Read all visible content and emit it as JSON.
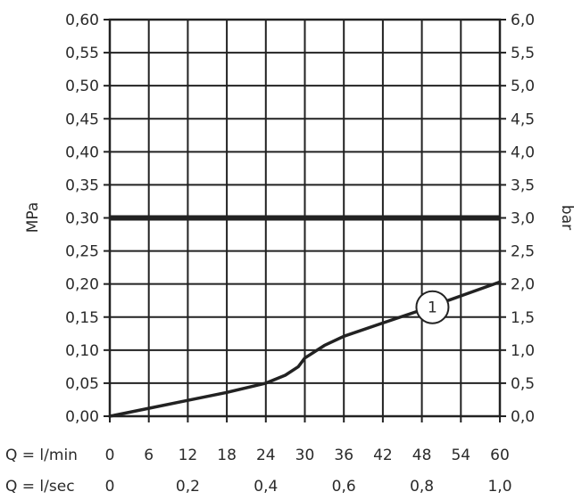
{
  "chart_data": {
    "type": "line",
    "left_axis": {
      "label": "MPa",
      "ylim": [
        0,
        0.6
      ],
      "ticks": [
        "0,00",
        "0,05",
        "0,10",
        "0,15",
        "0,20",
        "0,25",
        "0,30",
        "0,35",
        "0,40",
        "0,45",
        "0,50",
        "0,55",
        "0,60"
      ]
    },
    "right_axis": {
      "label": "bar",
      "ylim": [
        0,
        6
      ],
      "ticks": [
        "0,0",
        "0,5",
        "1,0",
        "1,5",
        "2,0",
        "2,5",
        "3,0",
        "3,5",
        "4,0",
        "4,5",
        "5,0",
        "5,5",
        "6,0"
      ]
    },
    "x_axis_lmin": {
      "label": "Q = l/min",
      "xlim": [
        0,
        60
      ],
      "ticks": [
        "0",
        "6",
        "12",
        "18",
        "24",
        "30",
        "36",
        "42",
        "48",
        "54",
        "60"
      ]
    },
    "x_axis_lsec": {
      "label": "Q = l/sec",
      "ticks": [
        {
          "value": 0,
          "text": "0"
        },
        {
          "value": 0.2,
          "text": "0,2"
        },
        {
          "value": 0.4,
          "text": "0,4"
        },
        {
          "value": 0.6,
          "text": "0,6"
        },
        {
          "value": 0.8,
          "text": "0,8"
        },
        {
          "value": 1.0,
          "text": "1,0"
        }
      ]
    },
    "grid": true,
    "reference_line": {
      "y": 0.3
    },
    "series": [
      {
        "label": "1",
        "x": [
          0,
          6,
          12,
          18,
          24,
          27,
          29,
          30,
          33,
          36,
          42,
          48,
          54,
          60
        ],
        "y": [
          0,
          0.012,
          0.024,
          0.036,
          0.05,
          0.062,
          0.075,
          0.088,
          0.107,
          0.121,
          0.141,
          0.161,
          0.182,
          0.203
        ]
      }
    ]
  }
}
